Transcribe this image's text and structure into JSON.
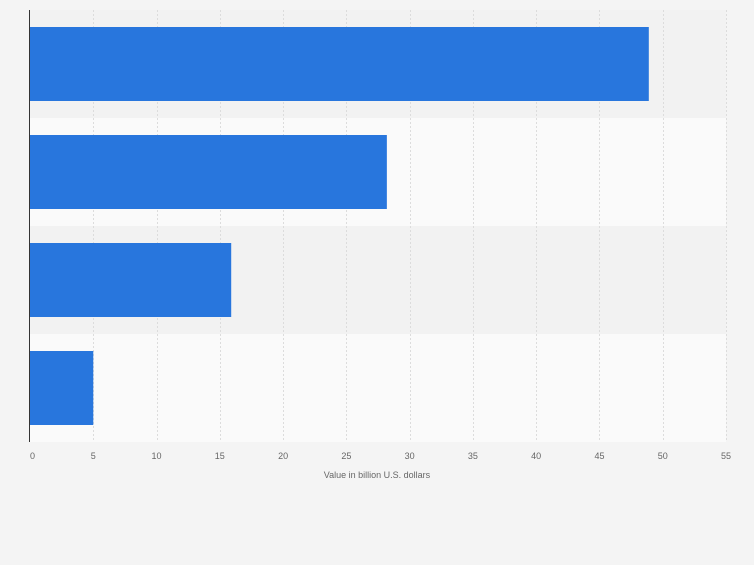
{
  "chart_data": {
    "type": "bar",
    "orientation": "horizontal",
    "categories": [
      "",
      "",
      "",
      ""
    ],
    "values": [
      48.9,
      28.2,
      15.9,
      5.0
    ],
    "xlabel": "Value in billion U.S. dollars",
    "ylabel": "",
    "xlim": [
      0,
      55
    ],
    "xticks": [
      0,
      5,
      10,
      15,
      20,
      25,
      30,
      35,
      40,
      45,
      50,
      55
    ],
    "grid": true,
    "legend": "none",
    "bar_color": "#2876dd",
    "band_colors": [
      "#f2f2f2",
      "#fafafa"
    ],
    "background": "#f4f4f4"
  }
}
